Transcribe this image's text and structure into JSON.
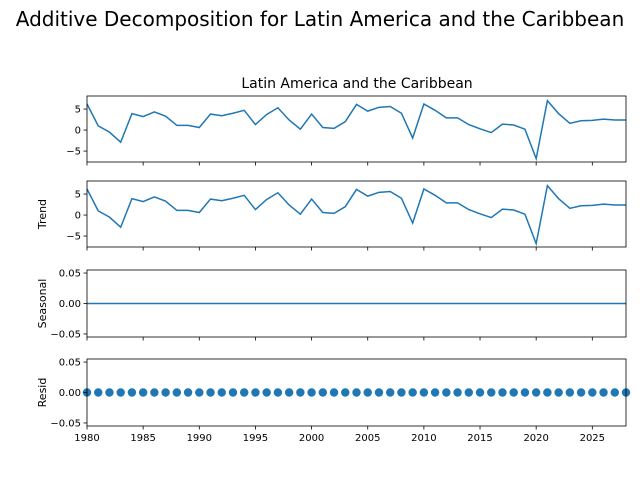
{
  "figure": {
    "suptitle": "Additive Decomposition for Latin America and the Caribbean",
    "subtitle": "Latin America and the Caribbean"
  },
  "chart_data": [
    {
      "type": "line",
      "panel": "observed",
      "title": "Latin America and the Caribbean",
      "ylabel": "",
      "xlim": [
        1980,
        2028
      ],
      "ylim": [
        -7.6,
        8.1
      ],
      "yticks": [
        -5,
        0,
        5
      ],
      "xticks": [
        1980,
        1985,
        1990,
        1995,
        2000,
        2005,
        2010,
        2015,
        2020,
        2025
      ],
      "x": [
        1980,
        1981,
        1982,
        1983,
        1984,
        1985,
        1986,
        1987,
        1988,
        1989,
        1990,
        1991,
        1992,
        1993,
        1994,
        1995,
        1996,
        1997,
        1998,
        1999,
        2000,
        2001,
        2002,
        2003,
        2004,
        2005,
        2006,
        2007,
        2008,
        2009,
        2010,
        2011,
        2012,
        2013,
        2014,
        2015,
        2016,
        2017,
        2018,
        2019,
        2020,
        2021,
        2022,
        2023,
        2024,
        2025,
        2026,
        2027,
        2028
      ],
      "values": [
        6.2,
        1.0,
        -0.5,
        -2.9,
        3.9,
        3.2,
        4.3,
        3.3,
        1.1,
        1.1,
        0.6,
        3.8,
        3.4,
        4.0,
        4.7,
        1.3,
        3.7,
        5.3,
        2.4,
        0.2,
        3.8,
        0.6,
        0.4,
        2.0,
        6.1,
        4.5,
        5.4,
        5.6,
        4.0,
        -1.9,
        6.2,
        4.7,
        2.9,
        2.9,
        1.3,
        0.3,
        -0.6,
        1.4,
        1.2,
        0.2,
        -6.8,
        7.0,
        3.9,
        1.6,
        2.2,
        2.3,
        2.6,
        2.4,
        2.4
      ]
    },
    {
      "type": "line",
      "panel": "trend",
      "ylabel": "Trend",
      "xlim": [
        1980,
        2028
      ],
      "ylim": [
        -7.6,
        8.1
      ],
      "yticks": [
        -5,
        0,
        5
      ],
      "xticks": [
        1980,
        1985,
        1990,
        1995,
        2000,
        2005,
        2010,
        2015,
        2020,
        2025
      ],
      "x": [
        1980,
        1981,
        1982,
        1983,
        1984,
        1985,
        1986,
        1987,
        1988,
        1989,
        1990,
        1991,
        1992,
        1993,
        1994,
        1995,
        1996,
        1997,
        1998,
        1999,
        2000,
        2001,
        2002,
        2003,
        2004,
        2005,
        2006,
        2007,
        2008,
        2009,
        2010,
        2011,
        2012,
        2013,
        2014,
        2015,
        2016,
        2017,
        2018,
        2019,
        2020,
        2021,
        2022,
        2023,
        2024,
        2025,
        2026,
        2027,
        2028
      ],
      "values": [
        6.2,
        1.0,
        -0.5,
        -2.9,
        3.9,
        3.2,
        4.3,
        3.3,
        1.1,
        1.1,
        0.6,
        3.8,
        3.4,
        4.0,
        4.7,
        1.3,
        3.7,
        5.3,
        2.4,
        0.2,
        3.8,
        0.6,
        0.4,
        2.0,
        6.1,
        4.5,
        5.4,
        5.6,
        4.0,
        -1.9,
        6.2,
        4.7,
        2.9,
        2.9,
        1.3,
        0.3,
        -0.6,
        1.4,
        1.2,
        0.2,
        -6.8,
        7.0,
        3.9,
        1.6,
        2.2,
        2.3,
        2.6,
        2.4,
        2.4
      ]
    },
    {
      "type": "line",
      "panel": "seasonal",
      "ylabel": "Seasonal",
      "xlim": [
        1980,
        2028
      ],
      "ylim": [
        -0.055,
        0.055
      ],
      "yticks": [
        -0.05,
        0.0,
        0.05
      ],
      "ytick_labels": [
        "−0.05",
        "0.00",
        "0.05"
      ],
      "x": [
        1980,
        2028
      ],
      "values": [
        0,
        0
      ]
    },
    {
      "type": "scatter",
      "panel": "resid",
      "ylabel": "Resid",
      "xlim": [
        1980,
        2028
      ],
      "ylim": [
        -0.055,
        0.055
      ],
      "yticks": [
        -0.05,
        0.0,
        0.05
      ],
      "ytick_labels": [
        "−0.05",
        "0.00",
        "0.05"
      ],
      "xticks": [
        1980,
        1985,
        1990,
        1995,
        2000,
        2005,
        2010,
        2015,
        2020,
        2025
      ],
      "xtick_labels": [
        "1980",
        "1985",
        "1990",
        "1995",
        "2000",
        "2005",
        "2010",
        "2015",
        "2020",
        "2025"
      ],
      "x": [
        1980,
        1981,
        1982,
        1983,
        1984,
        1985,
        1986,
        1987,
        1988,
        1989,
        1990,
        1991,
        1992,
        1993,
        1994,
        1995,
        1996,
        1997,
        1998,
        1999,
        2000,
        2001,
        2002,
        2003,
        2004,
        2005,
        2006,
        2007,
        2008,
        2009,
        2010,
        2011,
        2012,
        2013,
        2014,
        2015,
        2016,
        2017,
        2018,
        2019,
        2020,
        2021,
        2022,
        2023,
        2024,
        2025,
        2026,
        2027,
        2028
      ],
      "values": [
        0,
        0,
        0,
        0,
        0,
        0,
        0,
        0,
        0,
        0,
        0,
        0,
        0,
        0,
        0,
        0,
        0,
        0,
        0,
        0,
        0,
        0,
        0,
        0,
        0,
        0,
        0,
        0,
        0,
        0,
        0,
        0,
        0,
        0,
        0,
        0,
        0,
        0,
        0,
        0,
        0,
        0,
        0,
        0,
        0,
        0,
        0,
        0,
        0
      ]
    }
  ]
}
